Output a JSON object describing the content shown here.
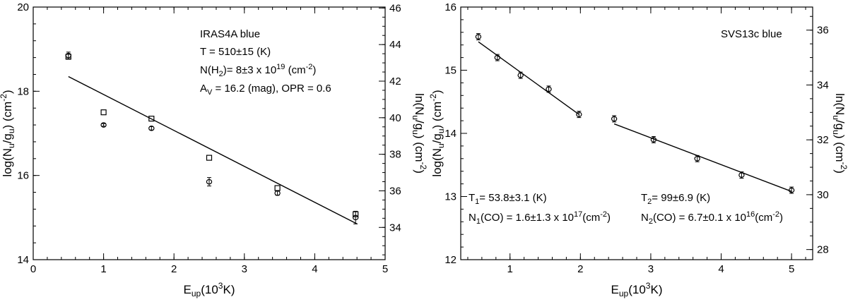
{
  "chart_data": [
    {
      "type": "scatter",
      "title": "",
      "xlabel": "E_up(10^3K)",
      "ylabel": "log(N_u/g_u) (cm^-2)",
      "y2label": "ln(N_u/g_u) (cm^-2)",
      "xlim": [
        0,
        5
      ],
      "ylim": [
        14,
        20
      ],
      "y2lim": [
        32.236,
        46.052
      ],
      "x_ticks": [
        "0",
        "1",
        "2",
        "3",
        "4",
        "5"
      ],
      "y_ticks": [
        "14",
        "16",
        "18",
        "20"
      ],
      "y2_ticks": [
        "34",
        "36",
        "38",
        "40",
        "42",
        "44",
        "46"
      ],
      "annotations": [
        "IRAS4A blue",
        "T = 510±15 (K)",
        "N(H2)= 8±3 x 10^19 (cm^-2)",
        "AV = 16.2 (mag), OPR = 0.6"
      ],
      "series": [
        {
          "marker": "circle",
          "x": [
            0.5,
            1.0,
            1.68,
            2.5,
            3.47,
            4.58
          ],
          "y": [
            18.85,
            17.2,
            17.12,
            15.85,
            15.58,
            15.0
          ],
          "yerr": [
            0.08,
            0.03,
            0.04,
            0.1,
            0.05,
            0.15
          ]
        },
        {
          "marker": "square",
          "x": [
            0.5,
            1.0,
            1.68,
            2.5,
            3.47,
            4.58
          ],
          "y": [
            18.82,
            17.5,
            17.35,
            16.42,
            15.7,
            15.08
          ]
        },
        {
          "marker": "line",
          "x": [
            0.5,
            4.6
          ],
          "y": [
            18.35,
            14.85
          ]
        }
      ]
    },
    {
      "type": "scatter",
      "title": "",
      "xlabel": "E_up(10^3K)",
      "ylabel": "log(N_u/g_u) (cm^-2)",
      "y2label": "ln(N_u/g_u) (cm^-2)",
      "xlim": [
        0.3,
        5.3
      ],
      "ylim": [
        12,
        16
      ],
      "y2lim": [
        27.631,
        36.841
      ],
      "x_ticks": [
        "1",
        "2",
        "3",
        "4",
        "5"
      ],
      "y_ticks": [
        "12",
        "13",
        "14",
        "15",
        "16"
      ],
      "y2_ticks": [
        "28",
        "30",
        "32",
        "34",
        "36"
      ],
      "annotations": [
        "SVS13c blue",
        "T1= 53.8±3.1 (K)",
        "N1(CO) = 1.6±1.3 x 10^17(cm^-2)",
        "T2= 99±6.9 (K)",
        "N2(CO) = 6.7±0.1 x 10^16(cm^-2)"
      ],
      "series": [
        {
          "marker": "circle",
          "x": [
            0.55,
            0.82,
            1.15,
            1.55,
            1.98,
            2.48,
            3.04,
            3.66,
            4.29,
            5.0
          ],
          "y": [
            15.53,
            15.2,
            14.92,
            14.7,
            14.3,
            14.23,
            13.9,
            13.6,
            13.34,
            13.1
          ],
          "yerr": [
            0.05,
            0.05,
            0.05,
            0.05,
            0.05,
            0.05,
            0.05,
            0.05,
            0.05,
            0.05
          ]
        },
        {
          "marker": "line",
          "x": [
            0.55,
            1.98
          ],
          "y": [
            15.45,
            14.3
          ]
        },
        {
          "marker": "line",
          "x": [
            2.48,
            5.0
          ],
          "y": [
            14.15,
            13.08
          ]
        }
      ]
    }
  ]
}
